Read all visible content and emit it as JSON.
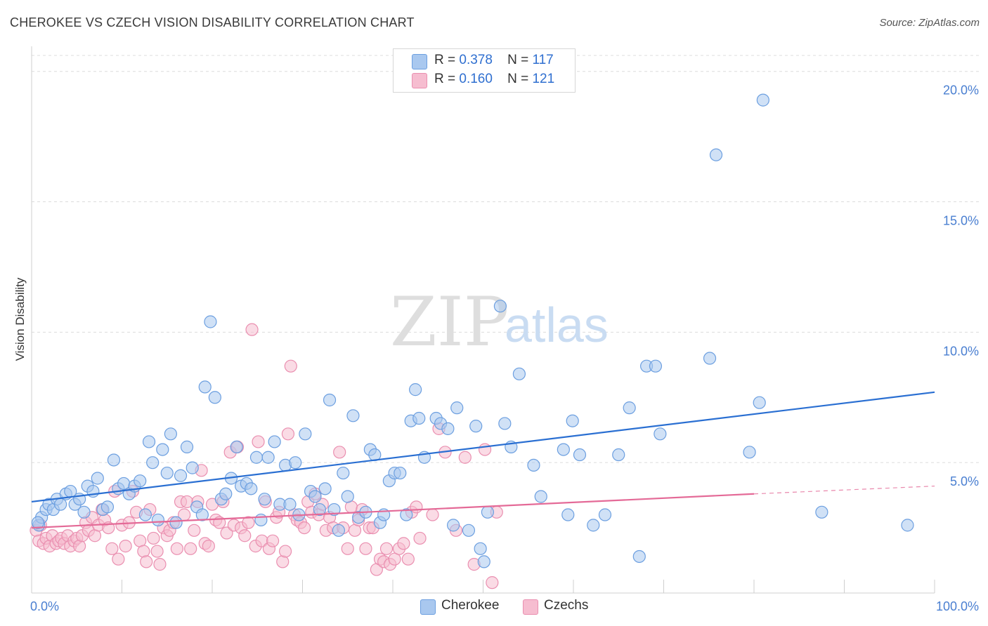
{
  "title": "CHEROKEE VS CZECH VISION DISABILITY CORRELATION CHART",
  "source": "Source: ZipAtlas.com",
  "watermark": {
    "zip": "ZIP",
    "atlas": "atlas"
  },
  "legend": {
    "rows": [
      {
        "r_label": "R =",
        "r_value": "0.378",
        "n_label": "N =",
        "n_value": "117"
      },
      {
        "r_label": "R =",
        "r_value": "0.160",
        "n_label": "N =",
        "n_value": "121"
      }
    ]
  },
  "bottom_legend": {
    "a": "Cherokee",
    "b": "Czechs"
  },
  "colors": {
    "cherokee_fill": "#a9c8ef",
    "cherokee_stroke": "#6c9fe0",
    "cherokee_line": "#2a6fd2",
    "czechs_fill": "#f6bdd0",
    "czechs_stroke": "#ea8fb0",
    "czechs_line": "#e46a97",
    "axis_label": "#4a7fd1",
    "grid": "#dcdcdc"
  },
  "chart_data": {
    "type": "scatter",
    "title": "CHEROKEE VS CZECH VISION DISABILITY CORRELATION CHART",
    "xlabel": "",
    "ylabel": "Vision Disability",
    "xlim": [
      0,
      100
    ],
    "ylim": [
      0,
      20.8
    ],
    "x_tick_labels": [
      "0.0%",
      "100.0%"
    ],
    "y_ticks": [
      5,
      10,
      15,
      20
    ],
    "y_tick_labels": [
      "5.0%",
      "10.0%",
      "15.0%",
      "20.0%"
    ],
    "grid": true,
    "legend_position": "top-center",
    "series": [
      {
        "name": "Cherokee",
        "R": 0.378,
        "N": 117,
        "trend": {
          "x": [
            0,
            100
          ],
          "y": [
            3.5,
            7.7
          ]
        },
        "points": [
          [
            0.8,
            2.6
          ],
          [
            1.1,
            2.9
          ],
          [
            1.6,
            3.2
          ],
          [
            1.9,
            3.4
          ],
          [
            2.4,
            3.2
          ],
          [
            2.8,
            3.6
          ],
          [
            3.2,
            3.4
          ],
          [
            3.8,
            3.8
          ],
          [
            4.3,
            3.9
          ],
          [
            4.8,
            3.4
          ],
          [
            5.3,
            3.6
          ],
          [
            5.8,
            3.1
          ],
          [
            6.2,
            4.1
          ],
          [
            6.8,
            3.9
          ],
          [
            7.3,
            4.4
          ],
          [
            7.9,
            3.2
          ],
          [
            8.4,
            3.3
          ],
          [
            9.1,
            5.1
          ],
          [
            9.6,
            4.0
          ],
          [
            10.2,
            4.2
          ],
          [
            10.8,
            3.8
          ],
          [
            11.4,
            4.1
          ],
          [
            12.0,
            4.3
          ],
          [
            12.6,
            3.0
          ],
          [
            13.0,
            5.8
          ],
          [
            13.4,
            5.0
          ],
          [
            14.0,
            2.8
          ],
          [
            14.5,
            5.5
          ],
          [
            15.0,
            4.6
          ],
          [
            15.4,
            6.1
          ],
          [
            16.0,
            2.7
          ],
          [
            16.5,
            4.5
          ],
          [
            17.2,
            5.6
          ],
          [
            17.8,
            4.8
          ],
          [
            18.3,
            3.3
          ],
          [
            18.9,
            3.0
          ],
          [
            19.2,
            7.9
          ],
          [
            19.8,
            10.4
          ],
          [
            20.3,
            7.5
          ],
          [
            21.0,
            3.6
          ],
          [
            21.5,
            3.8
          ],
          [
            22.1,
            4.4
          ],
          [
            22.7,
            5.6
          ],
          [
            23.2,
            4.1
          ],
          [
            23.8,
            4.2
          ],
          [
            24.3,
            4.0
          ],
          [
            24.9,
            5.2
          ],
          [
            25.4,
            2.8
          ],
          [
            25.8,
            3.6
          ],
          [
            26.2,
            5.2
          ],
          [
            26.9,
            5.8
          ],
          [
            27.5,
            3.4
          ],
          [
            28.1,
            4.9
          ],
          [
            28.6,
            3.4
          ],
          [
            29.2,
            5.0
          ],
          [
            29.6,
            3.0
          ],
          [
            30.3,
            6.1
          ],
          [
            30.9,
            3.9
          ],
          [
            31.4,
            3.7
          ],
          [
            31.9,
            3.2
          ],
          [
            32.5,
            4.0
          ],
          [
            33.0,
            7.4
          ],
          [
            33.5,
            3.2
          ],
          [
            34.0,
            2.4
          ],
          [
            34.5,
            4.6
          ],
          [
            35.0,
            3.7
          ],
          [
            35.6,
            6.8
          ],
          [
            36.2,
            2.9
          ],
          [
            37.0,
            3.1
          ],
          [
            37.5,
            5.5
          ],
          [
            38.0,
            5.3
          ],
          [
            38.6,
            2.7
          ],
          [
            39.0,
            3.0
          ],
          [
            39.6,
            4.3
          ],
          [
            40.2,
            4.6
          ],
          [
            40.8,
            4.6
          ],
          [
            41.5,
            3.0
          ],
          [
            42.0,
            6.6
          ],
          [
            42.5,
            7.8
          ],
          [
            42.9,
            6.7
          ],
          [
            43.5,
            5.2
          ],
          [
            44.8,
            6.7
          ],
          [
            45.3,
            6.5
          ],
          [
            46.1,
            6.3
          ],
          [
            46.7,
            2.6
          ],
          [
            47.1,
            7.1
          ],
          [
            48.4,
            2.4
          ],
          [
            49.2,
            6.4
          ],
          [
            49.7,
            1.7
          ],
          [
            50.1,
            1.2
          ],
          [
            50.5,
            3.1
          ],
          [
            51.9,
            11.0
          ],
          [
            52.4,
            6.5
          ],
          [
            53.1,
            5.6
          ],
          [
            54.0,
            8.4
          ],
          [
            55.6,
            4.9
          ],
          [
            56.4,
            3.7
          ],
          [
            58.9,
            5.5
          ],
          [
            59.4,
            3.0
          ],
          [
            59.9,
            6.6
          ],
          [
            60.7,
            5.3
          ],
          [
            62.2,
            2.6
          ],
          [
            63.5,
            3.0
          ],
          [
            65.0,
            5.3
          ],
          [
            66.2,
            7.1
          ],
          [
            67.3,
            1.4
          ],
          [
            68.1,
            8.7
          ],
          [
            69.1,
            8.7
          ],
          [
            69.6,
            6.1
          ],
          [
            75.1,
            9.0
          ],
          [
            75.8,
            16.8
          ],
          [
            79.5,
            5.4
          ],
          [
            80.6,
            7.3
          ],
          [
            81.0,
            18.9
          ],
          [
            87.5,
            3.1
          ],
          [
            97.0,
            2.6
          ],
          [
            0.7,
            2.7
          ]
        ]
      },
      {
        "name": "Czechs",
        "R": 0.16,
        "N": 121,
        "trend": {
          "x": [
            0,
            80
          ],
          "y": [
            2.5,
            3.8
          ]
        },
        "trend_extension": {
          "x": [
            80,
            100
          ],
          "y": [
            3.8,
            4.1
          ]
        },
        "points": [
          [
            0.5,
            2.4
          ],
          [
            0.8,
            2.0
          ],
          [
            1.0,
            2.6
          ],
          [
            1.3,
            1.9
          ],
          [
            1.6,
            2.1
          ],
          [
            2.0,
            1.8
          ],
          [
            2.3,
            2.2
          ],
          [
            2.7,
            1.9
          ],
          [
            3.0,
            2.0
          ],
          [
            3.3,
            2.1
          ],
          [
            3.6,
            1.9
          ],
          [
            4.0,
            2.2
          ],
          [
            4.3,
            1.8
          ],
          [
            4.7,
            2.0
          ],
          [
            5.0,
            2.1
          ],
          [
            5.3,
            1.8
          ],
          [
            5.6,
            2.2
          ],
          [
            6.0,
            2.7
          ],
          [
            6.3,
            2.4
          ],
          [
            6.7,
            2.9
          ],
          [
            7.0,
            2.2
          ],
          [
            7.4,
            2.6
          ],
          [
            7.8,
            3.2
          ],
          [
            8.1,
            2.8
          ],
          [
            8.5,
            2.5
          ],
          [
            8.9,
            1.7
          ],
          [
            9.2,
            3.9
          ],
          [
            9.6,
            1.3
          ],
          [
            10.0,
            2.6
          ],
          [
            10.4,
            1.8
          ],
          [
            10.8,
            2.7
          ],
          [
            11.2,
            3.9
          ],
          [
            11.6,
            3.1
          ],
          [
            12.0,
            2.0
          ],
          [
            12.4,
            1.6
          ],
          [
            12.7,
            1.2
          ],
          [
            13.1,
            3.2
          ],
          [
            13.5,
            2.1
          ],
          [
            13.9,
            1.6
          ],
          [
            14.2,
            1.1
          ],
          [
            14.6,
            2.5
          ],
          [
            15.0,
            2.2
          ],
          [
            15.3,
            2.4
          ],
          [
            15.7,
            2.7
          ],
          [
            16.1,
            1.7
          ],
          [
            16.5,
            3.5
          ],
          [
            16.9,
            3.0
          ],
          [
            17.2,
            3.5
          ],
          [
            17.6,
            1.7
          ],
          [
            18.0,
            2.4
          ],
          [
            18.4,
            3.5
          ],
          [
            18.8,
            4.7
          ],
          [
            19.2,
            1.9
          ],
          [
            19.6,
            1.8
          ],
          [
            20.0,
            3.4
          ],
          [
            20.4,
            2.8
          ],
          [
            20.8,
            2.7
          ],
          [
            21.2,
            3.5
          ],
          [
            21.6,
            2.3
          ],
          [
            22.0,
            5.4
          ],
          [
            22.4,
            2.6
          ],
          [
            22.8,
            5.6
          ],
          [
            23.2,
            2.5
          ],
          [
            23.6,
            2.2
          ],
          [
            24.0,
            2.7
          ],
          [
            24.4,
            10.1
          ],
          [
            24.8,
            1.8
          ],
          [
            25.1,
            5.8
          ],
          [
            25.5,
            2.0
          ],
          [
            25.9,
            3.5
          ],
          [
            26.3,
            1.7
          ],
          [
            26.7,
            2.0
          ],
          [
            27.1,
            2.9
          ],
          [
            27.4,
            3.1
          ],
          [
            27.8,
            1.2
          ],
          [
            28.1,
            1.6
          ],
          [
            28.4,
            6.1
          ],
          [
            28.7,
            8.7
          ],
          [
            29.1,
            3.0
          ],
          [
            29.4,
            2.8
          ],
          [
            29.8,
            2.7
          ],
          [
            30.2,
            2.5
          ],
          [
            30.6,
            3.5
          ],
          [
            31.0,
            3.1
          ],
          [
            31.4,
            3.8
          ],
          [
            31.8,
            3.0
          ],
          [
            32.2,
            3.4
          ],
          [
            32.6,
            2.4
          ],
          [
            33.0,
            2.9
          ],
          [
            33.4,
            2.5
          ],
          [
            34.1,
            5.4
          ],
          [
            34.5,
            2.5
          ],
          [
            35.0,
            1.7
          ],
          [
            35.4,
            3.3
          ],
          [
            35.8,
            2.4
          ],
          [
            36.2,
            2.8
          ],
          [
            36.6,
            3.2
          ],
          [
            37.0,
            1.7
          ],
          [
            37.4,
            2.5
          ],
          [
            37.8,
            2.5
          ],
          [
            38.2,
            0.9
          ],
          [
            38.6,
            1.3
          ],
          [
            39.0,
            1.2
          ],
          [
            39.3,
            1.7
          ],
          [
            39.7,
            1.1
          ],
          [
            40.2,
            1.3
          ],
          [
            40.7,
            1.7
          ],
          [
            41.2,
            1.9
          ],
          [
            41.7,
            1.3
          ],
          [
            42.1,
            3.1
          ],
          [
            42.6,
            3.3
          ],
          [
            43.0,
            2.1
          ],
          [
            44.4,
            3.0
          ],
          [
            45.1,
            6.3
          ],
          [
            45.8,
            5.4
          ],
          [
            47.0,
            2.4
          ],
          [
            48.0,
            5.2
          ],
          [
            49.0,
            1.1
          ],
          [
            50.2,
            5.5
          ],
          [
            51.5,
            3.1
          ],
          [
            51.0,
            0.4
          ]
        ]
      }
    ]
  }
}
